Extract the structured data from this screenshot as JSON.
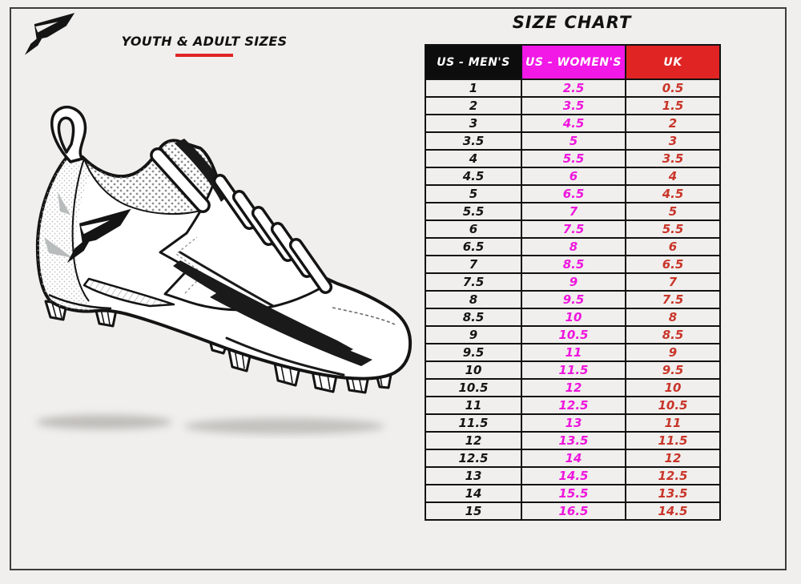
{
  "left_panel": {
    "heading": "YOUTH & ADULT SIZES",
    "illustration": "football-cleat-line-drawing",
    "logo": "phenom-p-logo"
  },
  "chart_data": {
    "type": "table",
    "title": "SIZE CHART",
    "columns": [
      "US - MEN'S",
      "US - WOMEN'S",
      "UK"
    ],
    "rows": [
      [
        "1",
        "2.5",
        "0.5"
      ],
      [
        "2",
        "3.5",
        "1.5"
      ],
      [
        "3",
        "4.5",
        "2"
      ],
      [
        "3.5",
        "5",
        "3"
      ],
      [
        "4",
        "5.5",
        "3.5"
      ],
      [
        "4.5",
        "6",
        "4"
      ],
      [
        "5",
        "6.5",
        "4.5"
      ],
      [
        "5.5",
        "7",
        "5"
      ],
      [
        "6",
        "7.5",
        "5.5"
      ],
      [
        "6.5",
        "8",
        "6"
      ],
      [
        "7",
        "8.5",
        "6.5"
      ],
      [
        "7.5",
        "9",
        "7"
      ],
      [
        "8",
        "9.5",
        "7.5"
      ],
      [
        "8.5",
        "10",
        "8"
      ],
      [
        "9",
        "10.5",
        "8.5"
      ],
      [
        "9.5",
        "11",
        "9"
      ],
      [
        "10",
        "11.5",
        "9.5"
      ],
      [
        "10.5",
        "12",
        "10"
      ],
      [
        "11",
        "12.5",
        "10.5"
      ],
      [
        "11.5",
        "13",
        "11"
      ],
      [
        "12",
        "13.5",
        "11.5"
      ],
      [
        "12.5",
        "14",
        "12"
      ],
      [
        "13",
        "14.5",
        "12.5"
      ],
      [
        "14",
        "15.5",
        "13.5"
      ],
      [
        "15",
        "16.5",
        "14.5"
      ]
    ],
    "legend_position": "none",
    "grid": true
  },
  "colors": {
    "page_bg": "#f0efed",
    "frame_border": "#3c3c3c",
    "table_border": "#111111",
    "mens_header_bg": "#0d0d0d",
    "womens_header_bg": "#f218e6",
    "uk_header_bg": "#e02424",
    "mens_text": "#151515",
    "womens_text": "#ee16dd",
    "uk_text": "#c9352a",
    "accent_underline": "#e02424"
  }
}
